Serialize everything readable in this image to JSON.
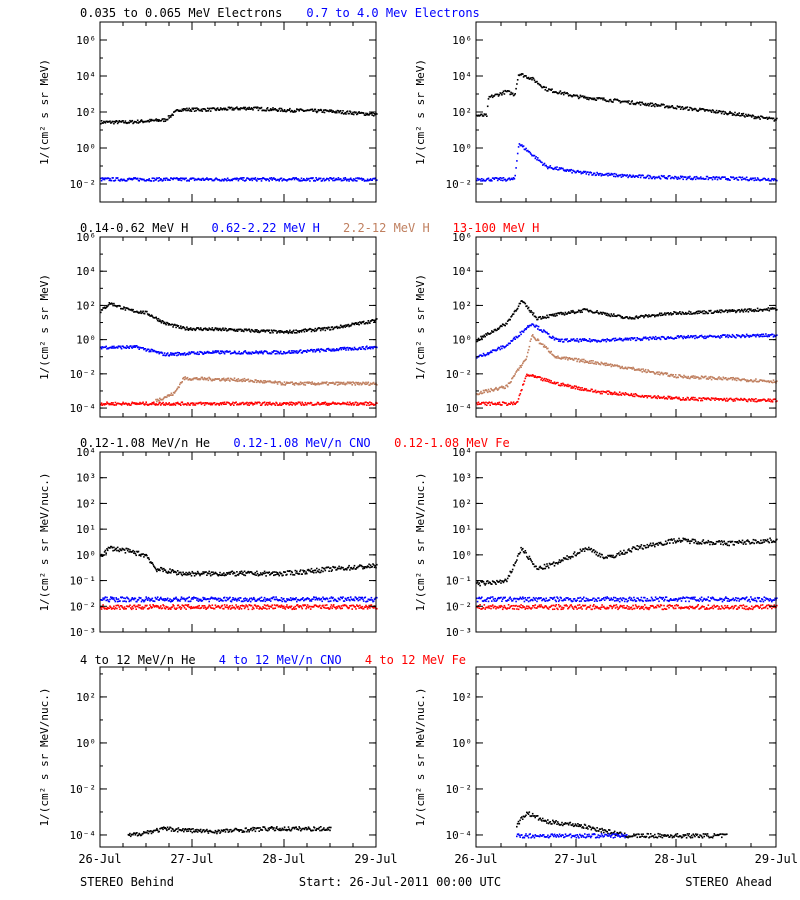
{
  "colors": {
    "black": "#000000",
    "blue": "#0000ff",
    "tan": "#c08060",
    "red": "#ff0000"
  },
  "legends": [
    [
      {
        "text": "0.035 to 0.065 MeV Electrons",
        "color": "#000000"
      },
      {
        "text": "0.7 to 4.0 Mev Electrons",
        "color": "#0000ff"
      }
    ],
    [
      {
        "text": "0.14-0.62 MeV H",
        "color": "#000000"
      },
      {
        "text": "0.62-2.22 MeV H",
        "color": "#0000ff"
      },
      {
        "text": "2.2-12 MeV H",
        "color": "#c08060"
      },
      {
        "text": "13-100 MeV H",
        "color": "#ff0000"
      }
    ],
    [
      {
        "text": "0.12-1.08 MeV/n He",
        "color": "#000000"
      },
      {
        "text": "0.12-1.08 MeV/n CNO",
        "color": "#0000ff"
      },
      {
        "text": "0.12-1.08 MeV Fe",
        "color": "#ff0000"
      }
    ],
    [
      {
        "text": "4 to 12 MeV/n He",
        "color": "#000000"
      },
      {
        "text": "4 to 12 MeV/n CNO",
        "color": "#0000ff"
      },
      {
        "text": "4 to 12 MeV Fe",
        "color": "#ff0000"
      }
    ]
  ],
  "footer": {
    "left": "STEREO Behind",
    "center": "Start: 26-Jul-2011 00:00 UTC",
    "right": "STEREO Ahead"
  },
  "chart_data": [
    {
      "type": "scatter",
      "panel": "electrons-behind",
      "ylabel": "1/(cm² s sr MeV)",
      "yscale": "log",
      "ylim": [
        0.001,
        10000000
      ],
      "yticks": [
        {
          "v": 1000000,
          "label": "10⁶"
        },
        {
          "v": 10000,
          "label": "10⁴"
        },
        {
          "v": 100,
          "label": "10²"
        },
        {
          "v": 1,
          "label": "10⁰"
        },
        {
          "v": 0.01,
          "label": "10⁻²"
        }
      ],
      "xlim": [
        0,
        3
      ],
      "xticks": [
        "26-Jul",
        "27-Jul",
        "28-Jul",
        "29-Jul"
      ],
      "series": [
        {
          "color": "#000000",
          "points": [
            [
              0,
              30
            ],
            [
              0.3,
              30
            ],
            [
              0.7,
              40
            ],
            [
              0.85,
              150
            ],
            [
              1.2,
              150
            ],
            [
              1.6,
              180
            ],
            [
              2,
              140
            ],
            [
              2.5,
              120
            ],
            [
              3,
              80
            ]
          ]
        },
        {
          "color": "#0000ff",
          "points": [
            [
              0,
              0.02
            ],
            [
              3,
              0.02
            ]
          ]
        }
      ]
    },
    {
      "type": "scatter",
      "panel": "electrons-ahead",
      "ylabel": "1/(cm² s sr MeV)",
      "yscale": "log",
      "ylim": [
        0.001,
        10000000
      ],
      "yticks": [
        {
          "v": 1000000,
          "label": "10⁶"
        },
        {
          "v": 10000,
          "label": "10⁴"
        },
        {
          "v": 100,
          "label": "10²"
        },
        {
          "v": 1,
          "label": "10⁰"
        },
        {
          "v": 0.01,
          "label": "10⁻²"
        }
      ],
      "xlim": [
        0,
        3
      ],
      "xticks": [
        "26-Jul",
        "27-Jul",
        "28-Jul",
        "29-Jul"
      ],
      "series": [
        {
          "color": "#000000",
          "points": [
            [
              0,
              70
            ],
            [
              0.1,
              70
            ],
            [
              0.12,
              700
            ],
            [
              0.3,
              1500
            ],
            [
              0.38,
              1000
            ],
            [
              0.42,
              15000
            ],
            [
              0.55,
              8000
            ],
            [
              0.7,
              2000
            ],
            [
              1,
              800
            ],
            [
              1.5,
              400
            ],
            [
              2,
              200
            ],
            [
              2.5,
              100
            ],
            [
              3,
              40
            ]
          ]
        },
        {
          "color": "#0000ff",
          "points": [
            [
              0,
              0.02
            ],
            [
              0.38,
              0.02
            ],
            [
              0.42,
              2
            ],
            [
              0.55,
              0.5
            ],
            [
              0.7,
              0.1
            ],
            [
              1,
              0.05
            ],
            [
              1.5,
              0.03
            ],
            [
              2,
              0.025
            ],
            [
              3,
              0.02
            ]
          ]
        }
      ]
    },
    {
      "type": "scatter",
      "panel": "protons-behind",
      "ylabel": "1/(cm² s sr MeV)",
      "yscale": "log",
      "ylim": [
        3e-05,
        1000000
      ],
      "yticks": [
        {
          "v": 1000000,
          "label": "10⁶"
        },
        {
          "v": 10000,
          "label": "10⁴"
        },
        {
          "v": 100,
          "label": "10²"
        },
        {
          "v": 1,
          "label": "10⁰"
        },
        {
          "v": 0.01,
          "label": "10⁻²"
        },
        {
          "v": 0.0001,
          "label": "10⁻⁴"
        }
      ],
      "xlim": [
        0,
        3
      ],
      "xticks": [
        "26-Jul",
        "27-Jul",
        "28-Jul",
        "29-Jul"
      ],
      "series": [
        {
          "color": "#000000",
          "points": [
            [
              0,
              50
            ],
            [
              0.1,
              150
            ],
            [
              0.3,
              60
            ],
            [
              0.5,
              40
            ],
            [
              0.7,
              10
            ],
            [
              0.9,
              5
            ],
            [
              1.5,
              4
            ],
            [
              2,
              3
            ],
            [
              2.5,
              5
            ],
            [
              3,
              15
            ]
          ]
        },
        {
          "color": "#0000ff",
          "points": [
            [
              0,
              0.4
            ],
            [
              0.4,
              0.4
            ],
            [
              0.7,
              0.15
            ],
            [
              1.2,
              0.2
            ],
            [
              2,
              0.2
            ],
            [
              3,
              0.4
            ]
          ]
        },
        {
          "color": "#c08060",
          "points": [
            [
              0.6,
              0.0003
            ],
            [
              0.8,
              0.0008
            ],
            [
              0.9,
              0.006
            ],
            [
              1.5,
              0.005
            ],
            [
              2,
              0.003
            ],
            [
              3,
              0.003
            ]
          ]
        },
        {
          "color": "#ff0000",
          "points": [
            [
              0,
              0.0002
            ],
            [
              3,
              0.0002
            ]
          ]
        }
      ]
    },
    {
      "type": "scatter",
      "panel": "protons-ahead",
      "ylabel": "1/(cm² s sr MeV)",
      "yscale": "log",
      "ylim": [
        3e-05,
        1000000
      ],
      "yticks": [
        {
          "v": 1000000,
          "label": "10⁶"
        },
        {
          "v": 10000,
          "label": "10⁴"
        },
        {
          "v": 100,
          "label": "10²"
        },
        {
          "v": 1,
          "label": "10⁰"
        },
        {
          "v": 0.01,
          "label": "10⁻²"
        },
        {
          "v": 0.0001,
          "label": "10⁻⁴"
        }
      ],
      "xlim": [
        0,
        3
      ],
      "xticks": [
        "26-Jul",
        "27-Jul",
        "28-Jul",
        "29-Jul"
      ],
      "series": [
        {
          "color": "#000000",
          "points": [
            [
              0,
              1
            ],
            [
              0.3,
              10
            ],
            [
              0.45,
              200
            ],
            [
              0.6,
              20
            ],
            [
              0.9,
              40
            ],
            [
              1.1,
              60
            ],
            [
              1.5,
              20
            ],
            [
              2,
              40
            ],
            [
              2.5,
              50
            ],
            [
              3,
              70
            ]
          ]
        },
        {
          "color": "#0000ff",
          "points": [
            [
              0,
              0.1
            ],
            [
              0.3,
              0.5
            ],
            [
              0.55,
              10
            ],
            [
              0.8,
              1
            ],
            [
              1.2,
              1
            ],
            [
              2,
              1.5
            ],
            [
              3,
              2
            ]
          ]
        },
        {
          "color": "#c08060",
          "points": [
            [
              0,
              0.0008
            ],
            [
              0.3,
              0.002
            ],
            [
              0.5,
              0.1
            ],
            [
              0.55,
              2
            ],
            [
              0.8,
              0.1
            ],
            [
              1.2,
              0.05
            ],
            [
              2,
              0.008
            ],
            [
              3,
              0.004
            ]
          ]
        },
        {
          "color": "#ff0000",
          "points": [
            [
              0,
              0.0002
            ],
            [
              0.4,
              0.0002
            ],
            [
              0.5,
              0.01
            ],
            [
              0.8,
              0.003
            ],
            [
              1.2,
              0.001
            ],
            [
              2,
              0.0004
            ],
            [
              3,
              0.0003
            ]
          ]
        }
      ]
    },
    {
      "type": "scatter",
      "panel": "heavy-low-behind",
      "ylabel": "1/(cm² s sr MeV/nuc.)",
      "yscale": "log",
      "ylim": [
        0.001,
        10000
      ],
      "yticks": [
        {
          "v": 10000,
          "label": "10⁴"
        },
        {
          "v": 1000,
          "label": "10³"
        },
        {
          "v": 100,
          "label": "10²"
        },
        {
          "v": 10,
          "label": "10¹"
        },
        {
          "v": 1,
          "label": "10⁰"
        },
        {
          "v": 0.1,
          "label": "10⁻¹"
        },
        {
          "v": 0.01,
          "label": "10⁻²"
        },
        {
          "v": 0.001,
          "label": "10⁻³"
        }
      ],
      "xlim": [
        0,
        3
      ],
      "xticks": [
        "26-Jul",
        "27-Jul",
        "28-Jul",
        "29-Jul"
      ],
      "series": [
        {
          "color": "#000000",
          "points": [
            [
              0,
              1
            ],
            [
              0.1,
              2
            ],
            [
              0.3,
              1.5
            ],
            [
              0.5,
              1
            ],
            [
              0.6,
              0.3
            ],
            [
              0.9,
              0.2
            ],
            [
              1.5,
              0.2
            ],
            [
              2,
              0.2
            ],
            [
              2.5,
              0.3
            ],
            [
              3,
              0.4
            ]
          ]
        },
        {
          "color": "#0000ff",
          "points": [
            [
              0,
              0.02
            ],
            [
              3,
              0.02
            ]
          ]
        },
        {
          "color": "#ff0000",
          "points": [
            [
              0,
              0.01
            ],
            [
              3,
              0.01
            ]
          ]
        }
      ]
    },
    {
      "type": "scatter",
      "panel": "heavy-low-ahead",
      "ylabel": "1/(cm² s sr MeV/nuc.)",
      "yscale": "log",
      "ylim": [
        0.001,
        10000
      ],
      "yticks": [
        {
          "v": 10000,
          "label": "10⁴"
        },
        {
          "v": 1000,
          "label": "10³"
        },
        {
          "v": 100,
          "label": "10²"
        },
        {
          "v": 10,
          "label": "10¹"
        },
        {
          "v": 1,
          "label": "10⁰"
        },
        {
          "v": 0.1,
          "label": "10⁻¹"
        },
        {
          "v": 0.01,
          "label": "10⁻²"
        },
        {
          "v": 0.001,
          "label": "10⁻³"
        }
      ],
      "xlim": [
        0,
        3
      ],
      "xticks": [
        "26-Jul",
        "27-Jul",
        "28-Jul",
        "29-Jul"
      ],
      "series": [
        {
          "color": "#000000",
          "points": [
            [
              0,
              0.08
            ],
            [
              0.3,
              0.1
            ],
            [
              0.45,
              2
            ],
            [
              0.6,
              0.3
            ],
            [
              0.8,
              0.5
            ],
            [
              1.1,
              2
            ],
            [
              1.3,
              0.8
            ],
            [
              1.6,
              2
            ],
            [
              2,
              4
            ],
            [
              2.5,
              3
            ],
            [
              3,
              4
            ]
          ]
        },
        {
          "color": "#0000ff",
          "points": [
            [
              0,
              0.02
            ],
            [
              3,
              0.02
            ]
          ]
        },
        {
          "color": "#ff0000",
          "points": [
            [
              0,
              0.01
            ],
            [
              3,
              0.01
            ]
          ]
        }
      ]
    },
    {
      "type": "scatter",
      "panel": "heavy-high-behind",
      "ylabel": "1/(cm² s sr MeV/nuc.)",
      "yscale": "log",
      "ylim": [
        3e-05,
        2000
      ],
      "yticks": [
        {
          "v": 100,
          "label": "10²"
        },
        {
          "v": 1,
          "label": "10⁰"
        },
        {
          "v": 0.01,
          "label": "10⁻²"
        },
        {
          "v": 0.0001,
          "label": "10⁻⁴"
        }
      ],
      "xlim": [
        0,
        3
      ],
      "xticks": [
        "26-Jul",
        "27-Jul",
        "28-Jul",
        "29-Jul"
      ],
      "series": [
        {
          "color": "#000000",
          "points": [
            [
              0.3,
              0.0001
            ],
            [
              0.7,
              0.0002
            ],
            [
              1.2,
              0.00015
            ],
            [
              1.8,
              0.0002
            ],
            [
              2.5,
              0.0002
            ]
          ]
        }
      ]
    },
    {
      "type": "scatter",
      "panel": "heavy-high-ahead",
      "ylabel": "1/(cm² s sr MeV/nuc.)",
      "yscale": "log",
      "ylim": [
        3e-05,
        2000
      ],
      "yticks": [
        {
          "v": 100,
          "label": "10²"
        },
        {
          "v": 1,
          "label": "10⁰"
        },
        {
          "v": 0.01,
          "label": "10⁻²"
        },
        {
          "v": 0.0001,
          "label": "10⁻⁴"
        }
      ],
      "xlim": [
        0,
        3
      ],
      "xticks": [
        "26-Jul",
        "27-Jul",
        "28-Jul",
        "29-Jul"
      ],
      "series": [
        {
          "color": "#000000",
          "points": [
            [
              0.4,
              0.0003
            ],
            [
              0.5,
              0.001
            ],
            [
              0.7,
              0.0004
            ],
            [
              1,
              0.0003
            ],
            [
              1.5,
              0.0001
            ],
            [
              2.5,
              0.0001
            ]
          ]
        },
        {
          "color": "#0000ff",
          "points": [
            [
              0.4,
              0.0001
            ],
            [
              1.5,
              0.0001
            ]
          ]
        }
      ]
    }
  ]
}
